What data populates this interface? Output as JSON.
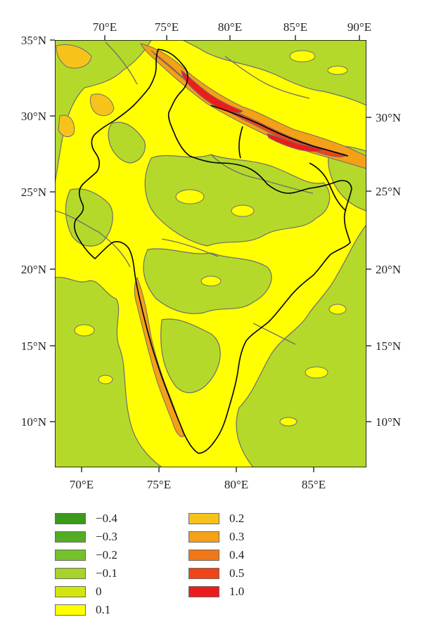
{
  "map": {
    "lon_labels_top": [
      "70°E",
      "75°E",
      "80°E",
      "85°E",
      "90°E"
    ],
    "lon_labels_bottom": [
      "70°E",
      "75°E",
      "80°E",
      "85°E"
    ],
    "lat_labels_left": [
      "35°N",
      "30°N",
      "25°N",
      "20°N",
      "15°N",
      "10°N"
    ],
    "lat_labels_right": [
      "30°N",
      "25°N",
      "20°N",
      "15°N",
      "10°N"
    ],
    "lon_range": [
      68,
      88.5
    ],
    "lat_range": [
      6.8,
      35
    ],
    "colors": {
      "background": "#ffff00",
      "contour_line": "#6e6e6e",
      "coast_line": "#000000"
    }
  },
  "legend": {
    "items": [
      {
        "label": "−0.4",
        "color": "#3a9a1a"
      },
      {
        "label": "−0.3",
        "color": "#52ad22"
      },
      {
        "label": "−0.2",
        "color": "#74c12c"
      },
      {
        "label": "−0.1",
        "color": "#a6d42a"
      },
      {
        "label": "0",
        "color": "#d2e60e"
      },
      {
        "label": "0.1",
        "color": "#ffff00"
      },
      {
        "label": "0.2",
        "color": "#f7c31b"
      },
      {
        "label": "0.3",
        "color": "#f5a017"
      },
      {
        "label": "0.4",
        "color": "#f27716"
      },
      {
        "label": "0.5",
        "color": "#ee4418"
      },
      {
        "label": "1.0",
        "color": "#ec1c1c"
      }
    ]
  }
}
